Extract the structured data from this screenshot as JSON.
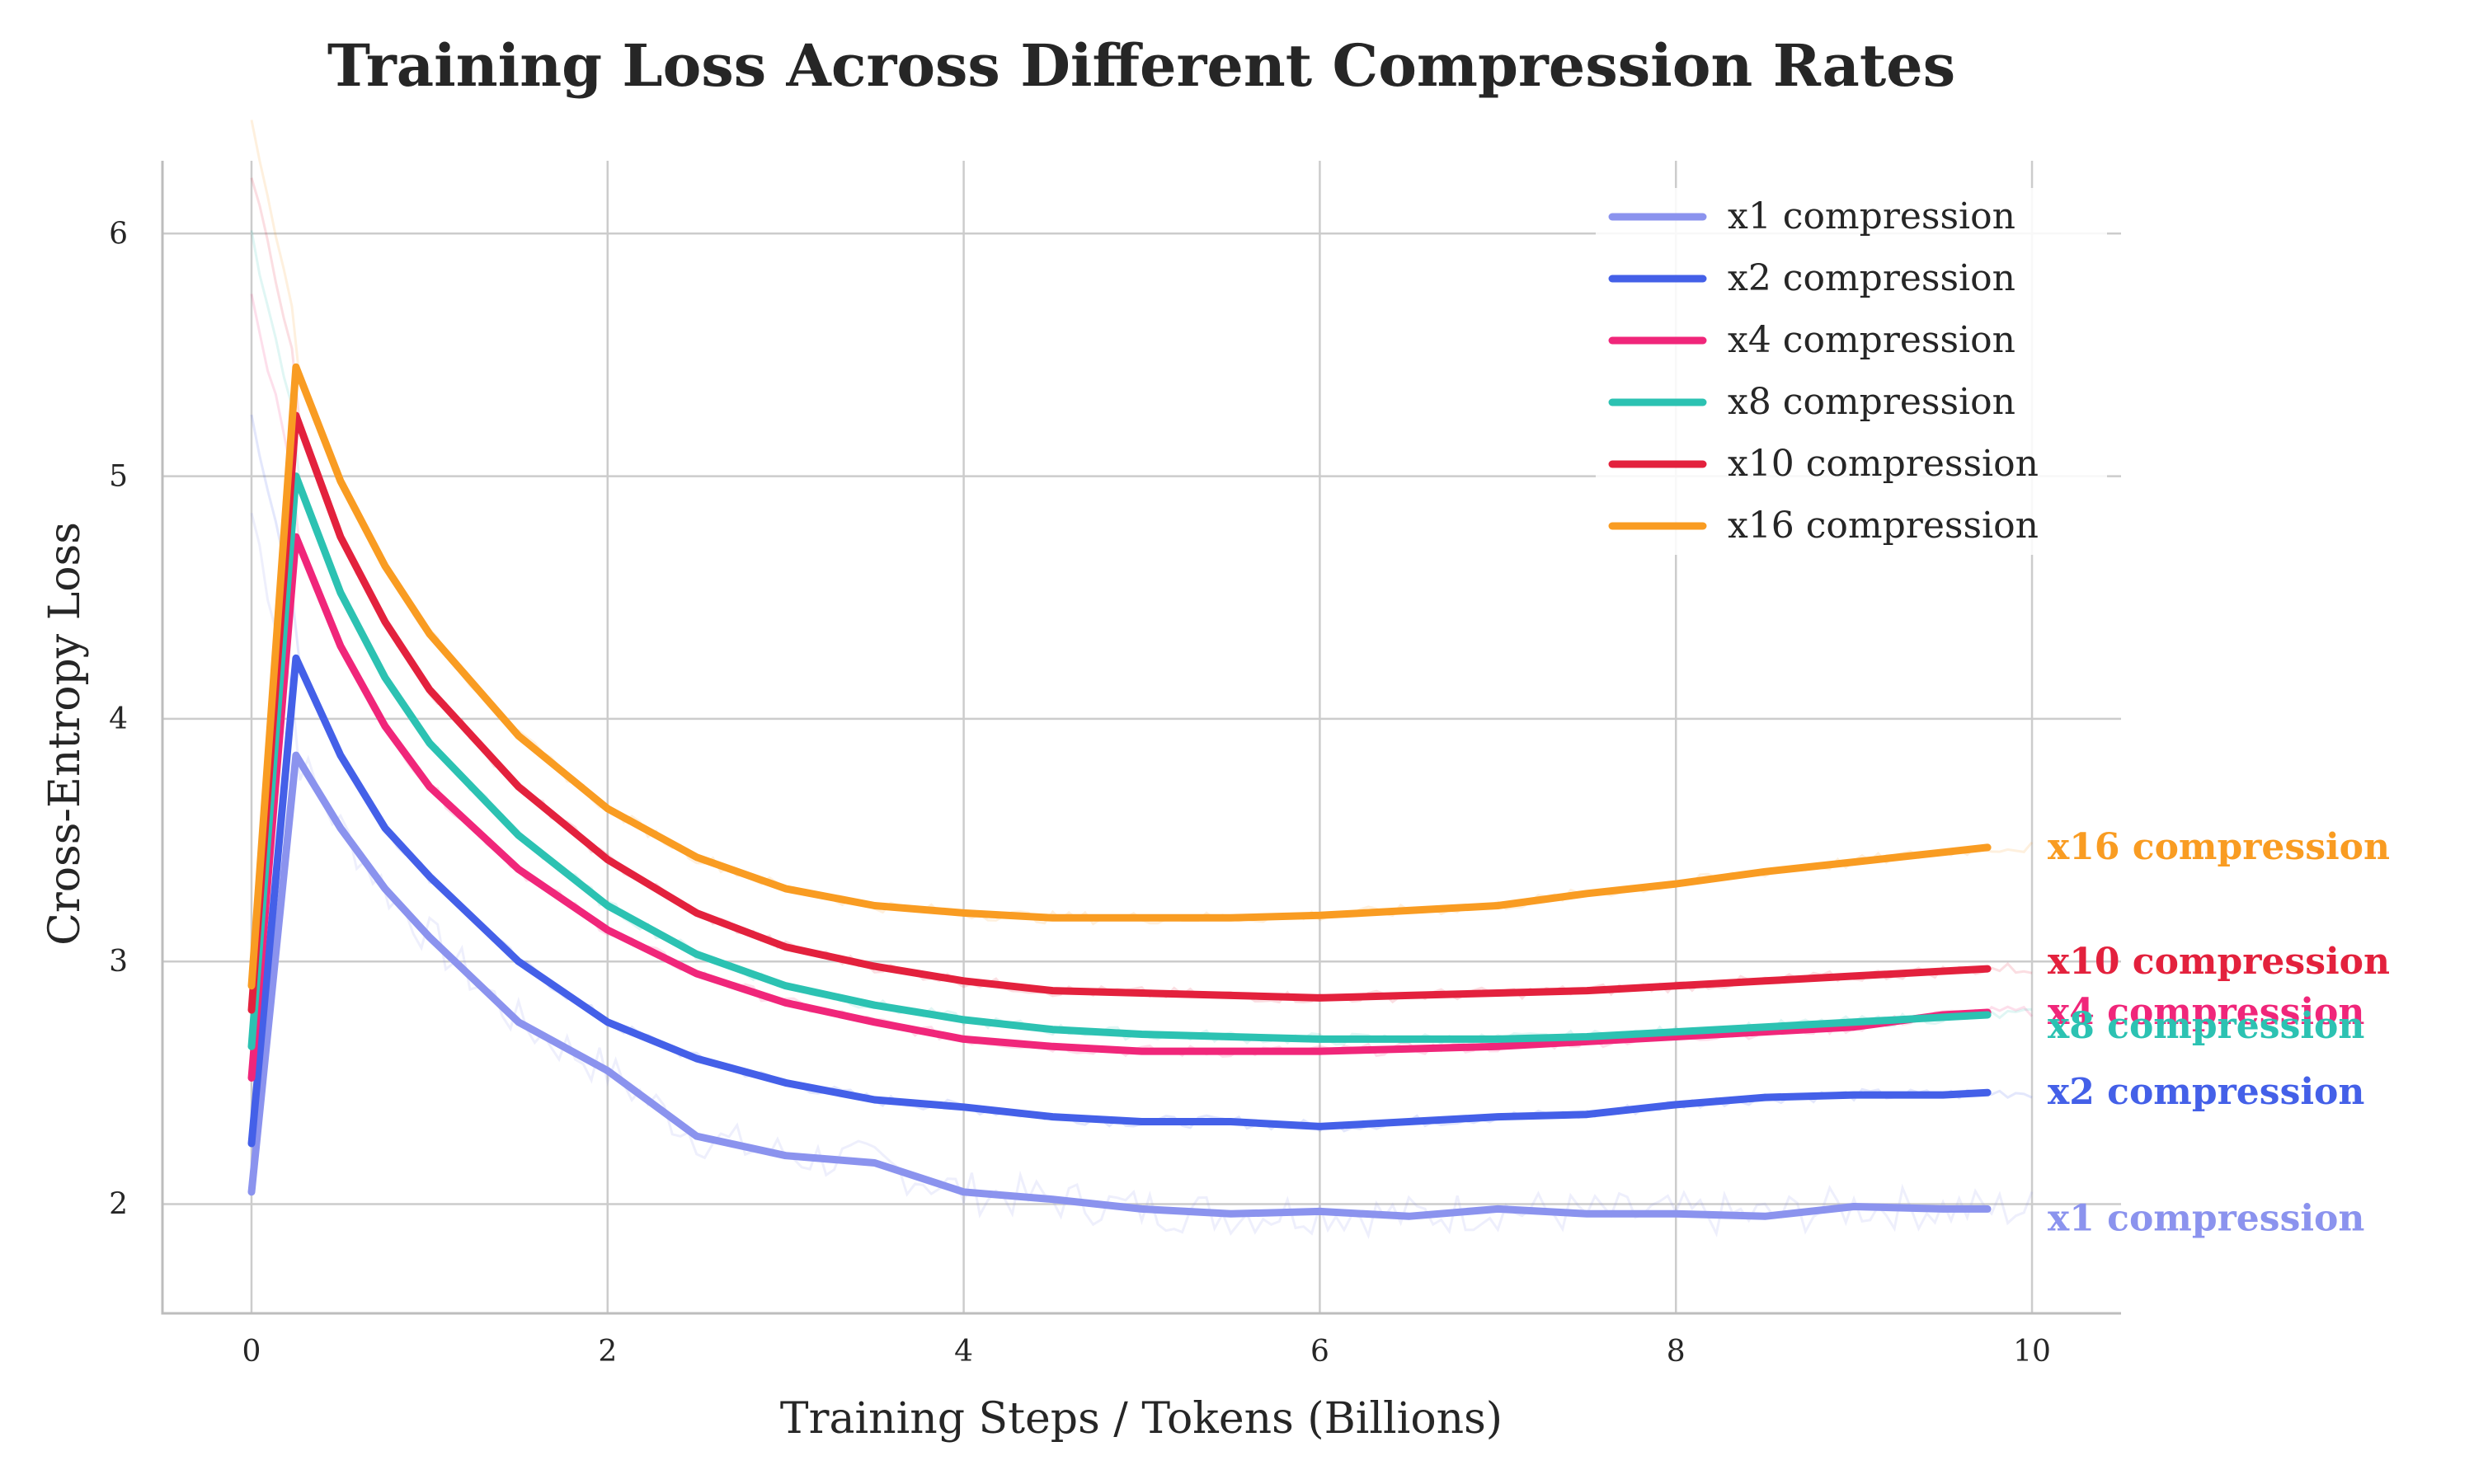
{
  "chart_data": {
    "type": "line",
    "title": "Training Loss Across Different Compression Rates",
    "xlabel": "Training Steps / Tokens (Billions)",
    "ylabel": "Cross-Entropy Loss",
    "xlim": [
      -0.5,
      10.5
    ],
    "ylim": [
      1.55,
      6.3
    ],
    "xticks": [
      0,
      2,
      4,
      6,
      8,
      10
    ],
    "yticks": [
      2,
      3,
      4,
      5,
      6
    ],
    "grid": true,
    "legend_position": "top-right",
    "x": [
      0,
      0.25,
      0.5,
      0.75,
      1.0,
      1.5,
      2.0,
      2.5,
      3.0,
      3.5,
      4.0,
      4.5,
      5.0,
      5.5,
      6.0,
      6.5,
      7.0,
      7.5,
      8.0,
      8.5,
      9.0,
      9.5,
      9.75
    ],
    "series": [
      {
        "name": "x1 compression",
        "color": "#8b93ee",
        "end_label": "x1 compression",
        "values": [
          2.05,
          3.85,
          3.55,
          3.3,
          3.1,
          2.75,
          2.55,
          2.28,
          2.2,
          2.17,
          2.05,
          2.02,
          1.98,
          1.96,
          1.97,
          1.95,
          1.98,
          1.96,
          1.96,
          1.95,
          1.99,
          1.98,
          1.98
        ]
      },
      {
        "name": "x2 compression",
        "color": "#4460e8",
        "end_label": "x2 compression",
        "values": [
          2.25,
          4.25,
          3.85,
          3.55,
          3.35,
          3.0,
          2.75,
          2.6,
          2.5,
          2.43,
          2.4,
          2.36,
          2.34,
          2.34,
          2.32,
          2.34,
          2.36,
          2.37,
          2.41,
          2.44,
          2.45,
          2.45,
          2.46
        ]
      },
      {
        "name": "x4 compression",
        "color": "#f0267a",
        "end_label": "x4 compression",
        "values": [
          2.52,
          4.75,
          4.3,
          3.97,
          3.72,
          3.38,
          3.13,
          2.95,
          2.83,
          2.75,
          2.68,
          2.65,
          2.63,
          2.63,
          2.63,
          2.64,
          2.65,
          2.67,
          2.69,
          2.71,
          2.73,
          2.78,
          2.79
        ]
      },
      {
        "name": "x8 compression",
        "color": "#2cc2b2",
        "end_label": "x8 compression",
        "values": [
          2.65,
          5.0,
          4.52,
          4.17,
          3.9,
          3.52,
          3.23,
          3.03,
          2.9,
          2.82,
          2.76,
          2.72,
          2.7,
          2.69,
          2.68,
          2.68,
          2.68,
          2.69,
          2.71,
          2.73,
          2.75,
          2.77,
          2.78
        ]
      },
      {
        "name": "x10 compression",
        "color": "#e3213d",
        "end_label": "x10 compression",
        "values": [
          2.8,
          5.25,
          4.75,
          4.4,
          4.12,
          3.72,
          3.42,
          3.2,
          3.06,
          2.98,
          2.92,
          2.88,
          2.87,
          2.86,
          2.85,
          2.86,
          2.87,
          2.88,
          2.9,
          2.92,
          2.94,
          2.96,
          2.97
        ]
      },
      {
        "name": "x16 compression",
        "color": "#f99c22",
        "end_label": "x16 compression",
        "values": [
          2.9,
          5.45,
          4.98,
          4.63,
          4.35,
          3.93,
          3.63,
          3.43,
          3.3,
          3.23,
          3.2,
          3.18,
          3.18,
          3.18,
          3.19,
          3.21,
          3.23,
          3.28,
          3.32,
          3.37,
          3.41,
          3.45,
          3.47
        ]
      }
    ]
  }
}
